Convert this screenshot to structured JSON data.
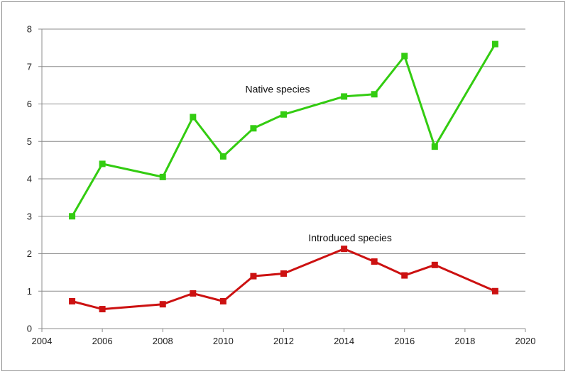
{
  "chart_data": {
    "type": "line",
    "title": "",
    "xlabel": "",
    "ylabel": "",
    "xlim": [
      2004,
      2020
    ],
    "ylim": [
      0,
      8
    ],
    "x_ticks": [
      2004,
      2006,
      2008,
      2010,
      2012,
      2014,
      2016,
      2018,
      2020
    ],
    "y_ticks": [
      0,
      1,
      2,
      3,
      4,
      5,
      6,
      7,
      8
    ],
    "grid": "horizontal",
    "legend": "none",
    "series": [
      {
        "name": "Native species",
        "color": "#33cc11",
        "label_at": [
          2011.8,
          6.3
        ],
        "x": [
          2005,
          2006,
          2008,
          2009,
          2010,
          2011,
          2012,
          2014,
          2015,
          2016,
          2017,
          2019
        ],
        "values": [
          3.0,
          4.4,
          4.05,
          5.65,
          4.6,
          5.35,
          5.72,
          6.2,
          6.26,
          7.28,
          4.86,
          7.6
        ]
      },
      {
        "name": "Introduced species",
        "color": "#cc1111",
        "label_at": [
          2014.2,
          2.33
        ],
        "x": [
          2005,
          2006,
          2008,
          2009,
          2010,
          2011,
          2012,
          2014,
          2015,
          2016,
          2017,
          2019
        ],
        "values": [
          0.73,
          0.52,
          0.65,
          0.94,
          0.73,
          1.4,
          1.47,
          2.13,
          1.79,
          1.42,
          1.7,
          1.0
        ]
      }
    ]
  }
}
